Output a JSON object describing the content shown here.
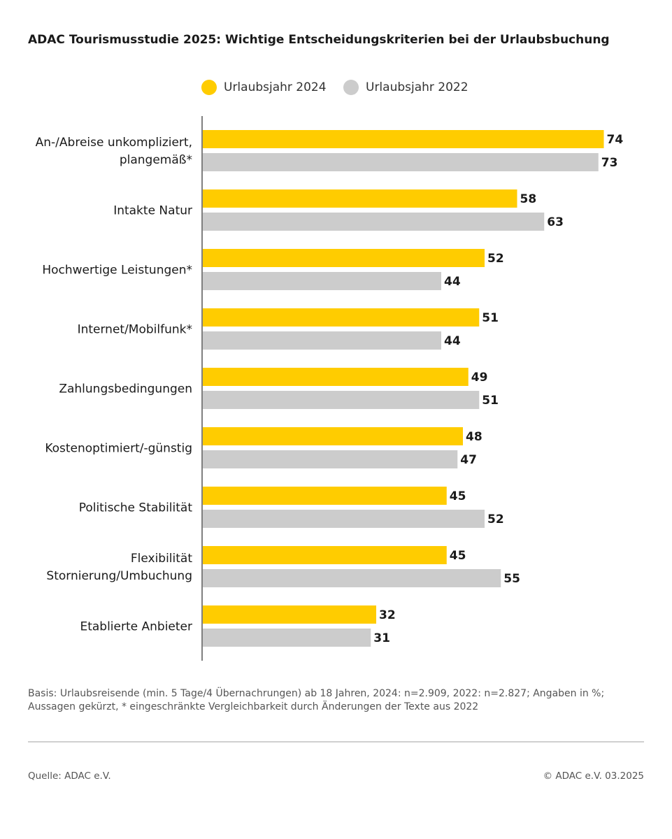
{
  "title": "ADAC Tourismusstudie 2025: Wichtige Entscheidungskriterien bei der Urlaubsbuchung",
  "footnote": {
    "line1": "Basis: Urlaubsreisende (min. 5 Tage/4 Übernachrungen) ab 18 Jahren, 2024: n=2.909, 2022: n=2.827; Angaben in %;",
    "line2": "Aussagen gekürzt, * eingeschränkte Vergleichbarkeit durch Änderungen der Texte aus 2022"
  },
  "source": "Quelle: ADAC e.V.",
  "copyright": "© ADAC e.V. 03.2025",
  "colors": {
    "series_2024": "#ffcc00",
    "series_2022": "#cccccc",
    "axis": "#555555"
  },
  "chart_data": {
    "type": "bar",
    "orientation": "horizontal",
    "title": "ADAC Tourismusstudie 2025: Wichtige Entscheidungskriterien bei der Urlaubsbuchung",
    "xlim": [
      0,
      100
    ],
    "grid": false,
    "legend_position": "top-center",
    "categories": [
      [
        "An-/Abreise unkompliziert,",
        "plangemäß*"
      ],
      [
        "Intakte Natur"
      ],
      [
        "Hochwertige Leistungen*"
      ],
      [
        "Internet/Mobilfunk*"
      ],
      [
        "Zahlungsbedingungen"
      ],
      [
        "Kostenoptimiert/-günstig"
      ],
      [
        "Politische Stabilität"
      ],
      [
        "Flexibilität",
        "Stornierung/Umbuchung"
      ],
      [
        "Etablierte Anbieter"
      ]
    ],
    "series": [
      {
        "name": "Urlaubsjahr 2024",
        "values": [
          74,
          58,
          52,
          51,
          49,
          48,
          45,
          45,
          32
        ]
      },
      {
        "name": "Urlaubsjahr 2022",
        "values": [
          73,
          63,
          44,
          44,
          51,
          47,
          52,
          55,
          31
        ]
      }
    ]
  }
}
